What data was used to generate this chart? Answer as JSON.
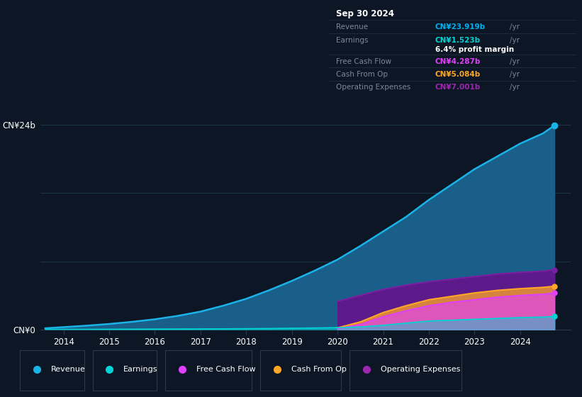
{
  "bg_color": "#0c1624",
  "plot_bg_color": "#0c1624",
  "title_box": {
    "date": "Sep 30 2024",
    "revenue_label": "Revenue",
    "revenue_value": "CN¥23.919b",
    "revenue_color": "#00b0f0",
    "earnings_label": "Earnings",
    "earnings_value": "CN¥1.523b",
    "earnings_color": "#00d4d4",
    "margin_text": "6.4% profit margin",
    "fcf_label": "Free Cash Flow",
    "fcf_value": "CN¥4.287b",
    "fcf_color": "#e040fb",
    "cashop_label": "Cash From Op",
    "cashop_value": "CN¥5.084b",
    "cashop_color": "#ffa726",
    "opex_label": "Operating Expenses",
    "opex_value": "CN¥7.001b",
    "opex_color": "#9c27b0"
  },
  "years": [
    2013.6,
    2014.0,
    2014.5,
    2015.0,
    2015.5,
    2016.0,
    2016.5,
    2017.0,
    2017.5,
    2018.0,
    2018.5,
    2019.0,
    2019.5,
    2020.0,
    2020.5,
    2021.0,
    2021.5,
    2022.0,
    2022.5,
    2023.0,
    2023.5,
    2024.0,
    2024.5,
    2024.75
  ],
  "revenue": [
    0.15,
    0.28,
    0.45,
    0.65,
    0.9,
    1.2,
    1.6,
    2.1,
    2.8,
    3.6,
    4.6,
    5.7,
    6.9,
    8.2,
    9.8,
    11.5,
    13.2,
    15.2,
    17.0,
    18.8,
    20.3,
    21.8,
    23.0,
    23.919
  ],
  "earnings": [
    0.01,
    0.015,
    0.02,
    0.03,
    0.04,
    0.05,
    0.06,
    0.07,
    0.08,
    0.1,
    0.12,
    0.15,
    0.18,
    0.22,
    0.3,
    0.5,
    0.75,
    1.0,
    1.1,
    1.2,
    1.3,
    1.4,
    1.46,
    1.523
  ],
  "free_cash_flow": [
    0,
    0,
    0,
    0,
    0,
    0,
    0,
    0,
    0,
    0,
    0,
    0,
    0,
    0.1,
    0.6,
    1.5,
    2.2,
    2.8,
    3.2,
    3.5,
    3.8,
    4.0,
    4.15,
    4.287
  ],
  "cash_from_op": [
    0,
    0,
    0,
    0,
    0,
    0,
    0,
    0,
    0,
    0,
    0,
    0,
    0,
    0.2,
    0.9,
    2.0,
    2.8,
    3.5,
    3.9,
    4.3,
    4.6,
    4.8,
    4.95,
    5.084
  ],
  "op_expenses": [
    0,
    0,
    0,
    0,
    0,
    0,
    0,
    0,
    0,
    0,
    0,
    0,
    0,
    3.3,
    4.0,
    4.7,
    5.2,
    5.6,
    5.9,
    6.2,
    6.5,
    6.7,
    6.85,
    7.001
  ],
  "revenue_line_color": "#1ab3e8",
  "revenue_fill_top": "#1a5f8a",
  "revenue_fill_bot": "#0c2a40",
  "earnings_color": "#00d4d4",
  "fcf_color": "#e040fb",
  "cashop_color": "#ffa726",
  "opex_color": "#7b1fa2",
  "opex_fill": "#5c1a8a",
  "ylim": [
    0,
    27
  ],
  "xlim": [
    2013.5,
    2025.1
  ],
  "grid_color": "#1e3448",
  "legend_items": [
    {
      "label": "Revenue",
      "color": "#1ab3e8"
    },
    {
      "label": "Earnings",
      "color": "#00d4d4"
    },
    {
      "label": "Free Cash Flow",
      "color": "#e040fb"
    },
    {
      "label": "Cash From Op",
      "color": "#ffa726"
    },
    {
      "label": "Operating Expenses",
      "color": "#9c27b0"
    }
  ]
}
